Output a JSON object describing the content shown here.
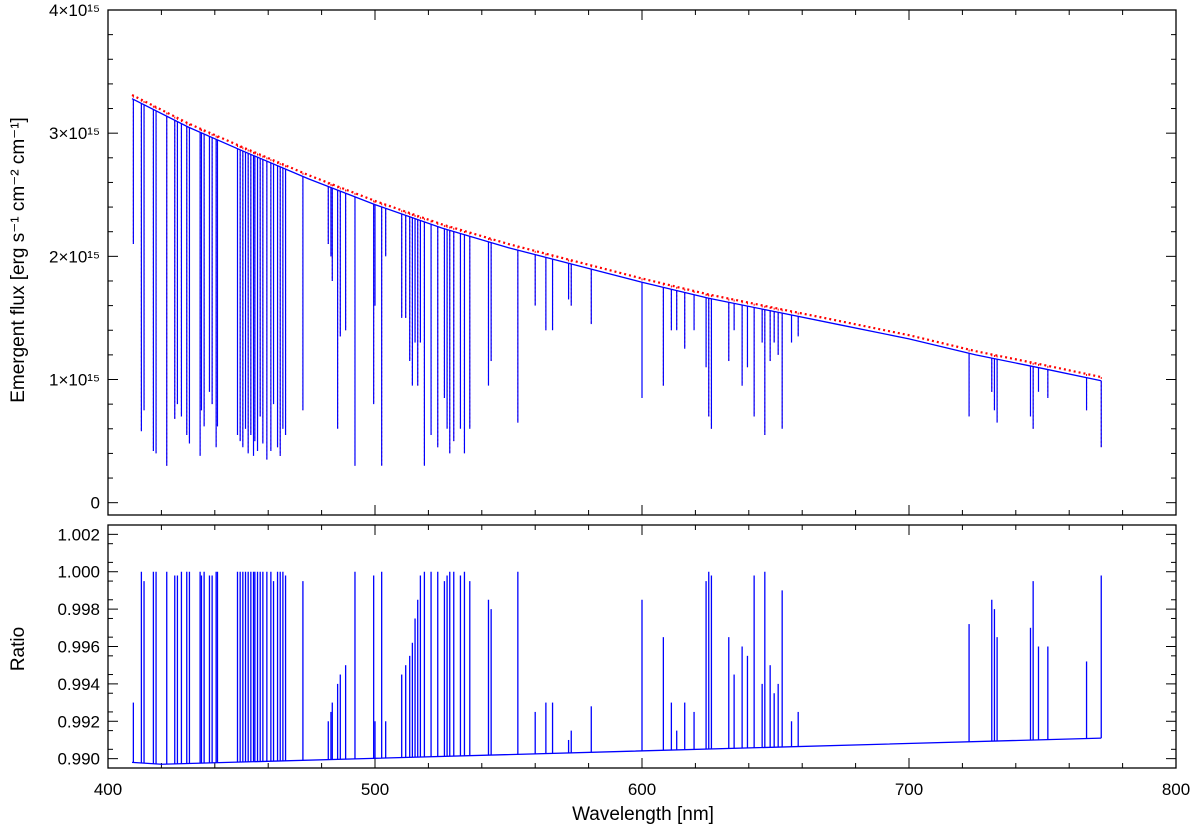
{
  "colors": {
    "model": "#0000ff",
    "reference": "#ff0000",
    "axes": "#000000"
  },
  "chart_data": [
    {
      "type": "line",
      "panel": "top",
      "xlabel": "",
      "ylabel": "Emergent flux  [erg s⁻¹ cm⁻² cm⁻¹]",
      "xlim": [
        400,
        800
      ],
      "ylim": [
        -100000000000000.0,
        4000000000000000.0
      ],
      "y_ticks": [
        0,
        1000000000000000.0,
        2000000000000000.0,
        3000000000000000.0,
        4000000000000000.0
      ],
      "y_tick_labels": [
        "0",
        "1×10¹⁵",
        "2×10¹⁵",
        "3×10¹⁵",
        "4×10¹⁵"
      ],
      "grid": false,
      "continuum": {
        "x": [
          409,
          430,
          450,
          475,
          500,
          525,
          550,
          575,
          600,
          625,
          650,
          675,
          700,
          725,
          750,
          772
        ],
        "y": [
          3280000000000000.0,
          3050000000000000.0,
          2860000000000000.0,
          2630000000000000.0,
          2420000000000000.0,
          2230000000000000.0,
          2070000000000000.0,
          1930000000000000.0,
          1790000000000000.0,
          1660000000000000.0,
          1550000000000000.0,
          1440000000000000.0,
          1330000000000000.0,
          1200000000000000.0,
          1090000000000000.0,
          990000000000000.0
        ]
      },
      "series": [
        {
          "name": "",
          "style": "solid",
          "lines": [
            [
              409.5,
              2100000000000000.0
            ],
            [
              412.5,
              580000000000000.0
            ],
            [
              413.5,
              750000000000000.0
            ],
            [
              417,
              420000000000000.0
            ],
            [
              418,
              400000000000000.0
            ],
            [
              422,
              300000000000000.0
            ],
            [
              425,
              680000000000000.0
            ],
            [
              426,
              800000000000000.0
            ],
            [
              427.5,
              700000000000000.0
            ],
            [
              429.5,
              550000000000000.0
            ],
            [
              430.5,
              480000000000000.0
            ],
            [
              434.5,
              380000000000000.0
            ],
            [
              435,
              750000000000000.0
            ],
            [
              436,
              620000000000000.0
            ],
            [
              438,
              900000000000000.0
            ],
            [
              439,
              800000000000000.0
            ],
            [
              440.5,
              450000000000000.0
            ],
            [
              441,
              620000000000000.0
            ],
            [
              448.5,
              550000000000000.0
            ],
            [
              449.5,
              500000000000000.0
            ],
            [
              450.5,
              450000000000000.0
            ],
            [
              451.5,
              600000000000000.0
            ],
            [
              452.5,
              400000000000000.0
            ],
            [
              453.5,
              550000000000000.0
            ],
            [
              454.5,
              380000000000000.0
            ],
            [
              455,
              500000000000000.0
            ],
            [
              456,
              420000000000000.0
            ],
            [
              457,
              700000000000000.0
            ],
            [
              458,
              480000000000000.0
            ],
            [
              459.5,
              350000000000000.0
            ],
            [
              461,
              420000000000000.0
            ],
            [
              462,
              800000000000000.0
            ],
            [
              463.5,
              450000000000000.0
            ],
            [
              464.5,
              380000000000000.0
            ],
            [
              465.5,
              600000000000000.0
            ],
            [
              466.5,
              550000000000000.0
            ],
            [
              473,
              750000000000000.0
            ],
            [
              482.5,
              2100000000000000.0
            ],
            [
              483.5,
              2000000000000000.0
            ],
            [
              484,
              1800000000000000.0
            ],
            [
              486,
              600000000000000.0
            ],
            [
              487,
              1350000000000000.0
            ],
            [
              489,
              1400000000000000.0
            ],
            [
              492.5,
              300000000000000.0
            ],
            [
              499.5,
              800000000000000.0
            ],
            [
              500,
              1600000000000000.0
            ],
            [
              502.5,
              300000000000000.0
            ],
            [
              504,
              2000000000000000.0
            ],
            [
              510,
              1500000000000000.0
            ],
            [
              511.5,
              1500000000000000.0
            ],
            [
              513,
              1150000000000000.0
            ],
            [
              514,
              950000000000000.0
            ],
            [
              515,
              1300000000000000.0
            ],
            [
              516,
              950000000000000.0
            ],
            [
              517,
              1300000000000000.0
            ],
            [
              518.5,
              300000000000000.0
            ],
            [
              521,
              550000000000000.0
            ],
            [
              523.5,
              450000000000000.0
            ],
            [
              526,
              850000000000000.0
            ],
            [
              527,
              600000000000000.0
            ],
            [
              528,
              400000000000000.0
            ],
            [
              529.5,
              500000000000000.0
            ],
            [
              532,
              600000000000000.0
            ],
            [
              533.5,
              400000000000000.0
            ],
            [
              535.5,
              600000000000000.0
            ],
            [
              542.5,
              950000000000000.0
            ],
            [
              543.5,
              1150000000000000.0
            ],
            [
              553.5,
              650000000000000.0
            ],
            [
              560,
              1600000000000000.0
            ],
            [
              564,
              1400000000000000.0
            ],
            [
              566.5,
              1400000000000000.0
            ],
            [
              572.5,
              1650000000000000.0
            ],
            [
              573.5,
              1600000000000000.0
            ],
            [
              581,
              1450000000000000.0
            ],
            [
              600,
              850000000000000.0
            ],
            [
              608,
              950000000000000.0
            ],
            [
              611,
              1400000000000000.0
            ],
            [
              613,
              1400000000000000.0
            ],
            [
              616,
              1250000000000000.0
            ],
            [
              619.5,
              1400000000000000.0
            ],
            [
              624,
              1100000000000000.0
            ],
            [
              625,
              700000000000000.0
            ],
            [
              626,
              600000000000000.0
            ],
            [
              632.5,
              1150000000000000.0
            ],
            [
              634.5,
              1400000000000000.0
            ],
            [
              637.5,
              950000000000000.0
            ],
            [
              639.5,
              1100000000000000.0
            ],
            [
              642,
              700000000000000.0
            ],
            [
              645,
              1300000000000000.0
            ],
            [
              646,
              550000000000000.0
            ],
            [
              648,
              1150000000000000.0
            ],
            [
              649.5,
              1300000000000000.0
            ],
            [
              651,
              1200000000000000.0
            ],
            [
              652.5,
              600000000000000.0
            ],
            [
              656,
              1300000000000000.0
            ],
            [
              658.5,
              1350000000000000.0
            ],
            [
              722.5,
              700000000000000.0
            ],
            [
              731,
              900000000000000.0
            ],
            [
              732,
              750000000000000.0
            ],
            [
              733,
              650000000000000.0
            ],
            [
              745.5,
              700000000000000.0
            ],
            [
              746.5,
              600000000000000.0
            ],
            [
              748.5,
              900000000000000.0
            ],
            [
              752,
              850000000000000.0
            ],
            [
              766.5,
              750000000000000.0
            ],
            [
              772,
              450000000000000.0
            ]
          ]
        },
        {
          "name": "",
          "style": "dotted",
          "continuum_offset": 30000000000000.0
        }
      ]
    },
    {
      "type": "line",
      "panel": "bottom",
      "xlabel": "Wavelength [nm]",
      "ylabel": "Ratio",
      "xlim": [
        400,
        800
      ],
      "ylim": [
        0.9895,
        1.0025
      ],
      "x_ticks": [
        400,
        500,
        600,
        700,
        800
      ],
      "x_tick_labels": [
        "400",
        "500",
        "600",
        "700",
        "800"
      ],
      "y_ticks": [
        0.99,
        0.992,
        0.994,
        0.996,
        0.998,
        1.0,
        1.002
      ],
      "y_tick_labels": [
        "0.990",
        "0.992",
        "0.994",
        "0.996",
        "0.998",
        "1.000",
        "1.002"
      ],
      "grid": false,
      "baseline": {
        "x": [
          409,
          420,
          772
        ],
        "y": [
          0.9898,
          0.9897,
          0.9911
        ]
      },
      "series": [
        {
          "name": "",
          "spikes": [
            [
              409.5,
              0.993
            ],
            [
              412.5,
              1.0
            ],
            [
              413.5,
              0.9995
            ],
            [
              417,
              1.0
            ],
            [
              418,
              1.0
            ],
            [
              422,
              1.0
            ],
            [
              425,
              0.9998
            ],
            [
              426,
              0.9998
            ],
            [
              427.5,
              1.0
            ],
            [
              429.5,
              1.0
            ],
            [
              430.5,
              1.0
            ],
            [
              434.5,
              1.0
            ],
            [
              435,
              0.9998
            ],
            [
              436,
              1.0
            ],
            [
              438,
              0.9998
            ],
            [
              439,
              0.9998
            ],
            [
              440.5,
              1.0
            ],
            [
              441,
              1.0
            ],
            [
              448.5,
              1.0
            ],
            [
              449.5,
              1.0
            ],
            [
              450.5,
              1.0
            ],
            [
              451.5,
              1.0
            ],
            [
              452.5,
              1.0
            ],
            [
              453.5,
              1.0
            ],
            [
              454.5,
              1.0
            ],
            [
              455,
              1.0
            ],
            [
              456,
              1.0
            ],
            [
              457,
              1.0
            ],
            [
              458,
              1.0
            ],
            [
              459.5,
              1.0
            ],
            [
              461,
              1.0
            ],
            [
              462,
              0.9995
            ],
            [
              463.5,
              1.0
            ],
            [
              464.5,
              1.0
            ],
            [
              465.5,
              1.0
            ],
            [
              466.5,
              0.9998
            ],
            [
              473,
              0.9995
            ],
            [
              482.5,
              0.992
            ],
            [
              483.5,
              0.9925
            ],
            [
              484,
              0.993
            ],
            [
              486,
              0.994
            ],
            [
              487,
              0.9945
            ],
            [
              489,
              0.995
            ],
            [
              492.5,
              1.0
            ],
            [
              499.5,
              0.9998
            ],
            [
              500,
              0.992
            ],
            [
              502.5,
              1.0
            ],
            [
              504,
              0.992
            ],
            [
              510,
              0.9945
            ],
            [
              511.5,
              0.995
            ],
            [
              513,
              0.9955
            ],
            [
              514,
              0.9962
            ],
            [
              515,
              0.9975
            ],
            [
              516,
              0.9985
            ],
            [
              517,
              0.9998
            ],
            [
              518.5,
              1.0
            ],
            [
              521,
              1.0
            ],
            [
              523.5,
              1.0
            ],
            [
              526,
              0.9995
            ],
            [
              527,
              0.9998
            ],
            [
              528,
              1.0
            ],
            [
              529.5,
              1.0
            ],
            [
              532,
              0.9998
            ],
            [
              533.5,
              1.0
            ],
            [
              535.5,
              0.9995
            ],
            [
              542.5,
              0.9985
            ],
            [
              543.5,
              0.998
            ],
            [
              553.5,
              1.0
            ],
            [
              560,
              0.9925
            ],
            [
              564,
              0.993
            ],
            [
              566.5,
              0.993
            ],
            [
              572.5,
              0.991
            ],
            [
              573.5,
              0.9915
            ],
            [
              581,
              0.9928
            ],
            [
              600,
              0.9985
            ],
            [
              608,
              0.9965
            ],
            [
              611,
              0.993
            ],
            [
              613,
              0.9915
            ],
            [
              616,
              0.993
            ],
            [
              619.5,
              0.9925
            ],
            [
              624,
              0.9995
            ],
            [
              625,
              1.0
            ],
            [
              626,
              0.9998
            ],
            [
              632.5,
              0.9965
            ],
            [
              634.5,
              0.9945
            ],
            [
              637.5,
              0.996
            ],
            [
              639.5,
              0.9955
            ],
            [
              642,
              0.9998
            ],
            [
              645,
              0.994
            ],
            [
              646,
              1.0
            ],
            [
              648,
              0.995
            ],
            [
              649.5,
              0.9935
            ],
            [
              651,
              0.994
            ],
            [
              652.5,
              0.999
            ],
            [
              656,
              0.992
            ],
            [
              658.5,
              0.9925
            ],
            [
              722.5,
              0.9972
            ],
            [
              731,
              0.9985
            ],
            [
              732,
              0.998
            ],
            [
              733,
              0.9965
            ],
            [
              745.5,
              0.997
            ],
            [
              746.5,
              0.9995
            ],
            [
              748.5,
              0.996
            ],
            [
              752,
              0.996
            ],
            [
              766.5,
              0.9952
            ],
            [
              772,
              0.9998
            ]
          ]
        }
      ]
    }
  ]
}
